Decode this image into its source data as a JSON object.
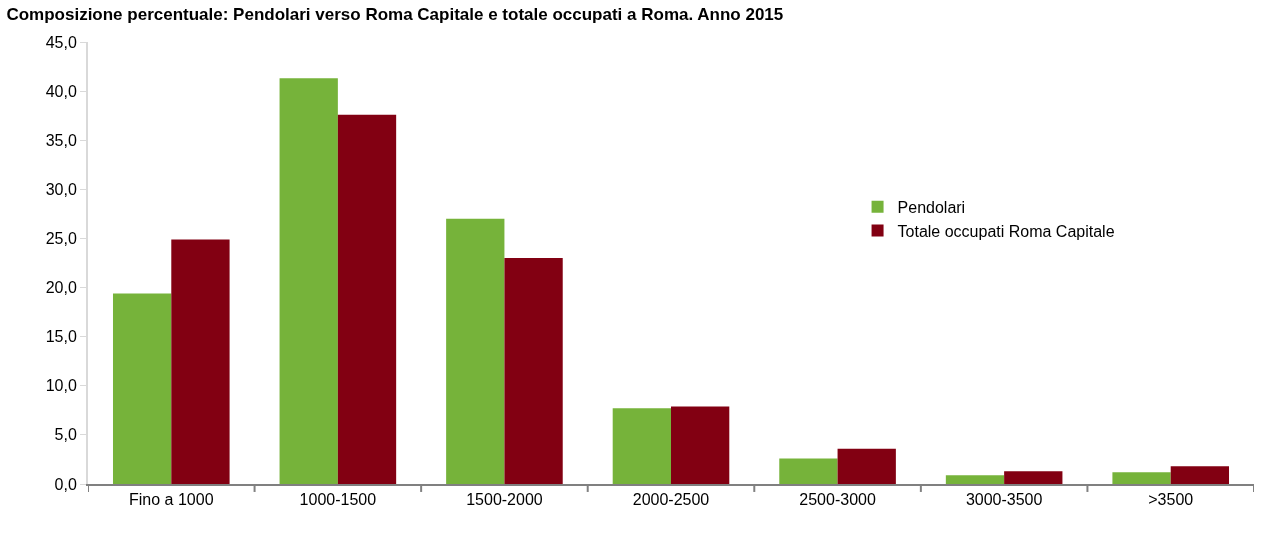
{
  "chart_data": {
    "type": "bar",
    "title": "Composizione percentuale: Pendolari verso Roma Capitale e totale occupati a Roma. Anno 2015",
    "categories": [
      "Fino a 1000",
      "1000-1500",
      "1500-2000",
      "2000-2500",
      "2500-3000",
      "3000-3500",
      ">3500"
    ],
    "series": [
      {
        "name": "Pendolari",
        "color": "#76b33a",
        "values": [
          19.4,
          41.3,
          27.0,
          7.7,
          2.6,
          0.9,
          1.2
        ]
      },
      {
        "name": "Totale occupati Roma Capitale",
        "color": "#820012",
        "values": [
          24.9,
          37.6,
          23.0,
          7.9,
          3.6,
          1.3,
          1.8
        ]
      }
    ],
    "ylim": [
      0,
      45
    ],
    "yticks": [
      {
        "value": 0,
        "label": "0,0"
      },
      {
        "value": 5,
        "label": "5,0"
      },
      {
        "value": 10,
        "label": "10,0"
      },
      {
        "value": 15,
        "label": "15,0"
      },
      {
        "value": 20,
        "label": "20,0"
      },
      {
        "value": 25,
        "label": "25,0"
      },
      {
        "value": 30,
        "label": "30,0"
      },
      {
        "value": 35,
        "label": "35,0"
      },
      {
        "value": 40,
        "label": "40,0"
      },
      {
        "value": 45,
        "label": "45,0"
      }
    ],
    "legend": "right"
  }
}
